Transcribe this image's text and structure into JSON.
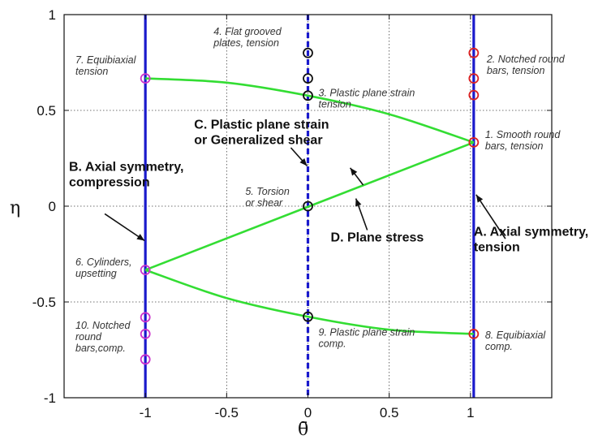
{
  "chart_data": {
    "type": "line",
    "title": "",
    "xlabel": "θ̄",
    "ylabel": "η",
    "xlim": [
      -1.5,
      1.5
    ],
    "ylim": [
      -1,
      1
    ],
    "x_ticks": [
      {
        "value": -1,
        "label": "-1"
      },
      {
        "value": -0.5,
        "label": "-0.5"
      },
      {
        "value": 0,
        "label": "0"
      },
      {
        "value": 0.5,
        "label": "0.5"
      },
      {
        "value": 1,
        "label": "1"
      }
    ],
    "y_ticks": [
      {
        "value": 1,
        "label": "1"
      },
      {
        "value": 0.5,
        "label": "0.5"
      },
      {
        "value": 0,
        "label": "0"
      },
      {
        "value": -0.5,
        "label": "-0.5"
      },
      {
        "value": -1,
        "label": "-1"
      }
    ],
    "grid": true,
    "colors": {
      "plane_stress": "#33dd33",
      "vertical": "#1a1acc",
      "red_marker": "#dd2222",
      "black_marker": "#111111",
      "magenta_marker": "#cc33cc"
    },
    "vertical_lines": [
      {
        "x": -1,
        "style": "solid"
      },
      {
        "x": 0,
        "style": "dashed"
      },
      {
        "x": 1.02,
        "style": "solid"
      }
    ],
    "curves": [
      {
        "points": [
          [
            -1,
            0.667
          ],
          [
            -0.5,
            0.645
          ],
          [
            0,
            0.577
          ],
          [
            0.5,
            0.48
          ],
          [
            1.02,
            0.333
          ]
        ]
      },
      {
        "points": [
          [
            -1,
            -0.333
          ],
          [
            1.02,
            0.333
          ]
        ]
      },
      {
        "points": [
          [
            -1,
            -0.333
          ],
          [
            -0.5,
            -0.48
          ],
          [
            0,
            -0.577
          ],
          [
            0.5,
            -0.645
          ],
          [
            1.02,
            -0.667
          ]
        ]
      }
    ],
    "markers": [
      {
        "x": 1.02,
        "y": 0.8,
        "color": "red"
      },
      {
        "x": 1.02,
        "y": 0.667,
        "color": "red"
      },
      {
        "x": 1.02,
        "y": 0.58,
        "color": "red"
      },
      {
        "x": 1.02,
        "y": 0.333,
        "color": "red"
      },
      {
        "x": 1.02,
        "y": -0.667,
        "color": "red"
      },
      {
        "x": 0,
        "y": 0.8,
        "color": "black"
      },
      {
        "x": 0,
        "y": 0.667,
        "color": "black"
      },
      {
        "x": 0,
        "y": 0.577,
        "color": "black"
      },
      {
        "x": 0,
        "y": 0,
        "color": "black"
      },
      {
        "x": 0,
        "y": -0.577,
        "color": "black"
      },
      {
        "x": -1,
        "y": 0.667,
        "color": "magenta"
      },
      {
        "x": -1,
        "y": -0.333,
        "color": "magenta"
      },
      {
        "x": -1,
        "y": -0.58,
        "color": "magenta"
      },
      {
        "x": -1,
        "y": -0.667,
        "color": "magenta"
      },
      {
        "x": -1,
        "y": -0.8,
        "color": "magenta"
      }
    ],
    "point_labels": [
      {
        "lines": [
          "7. Equibiaxial",
          "tension"
        ],
        "x": -1.43,
        "y": 0.745
      },
      {
        "lines": [
          "4. Flat grooved",
          "plates, tension"
        ],
        "x": -0.58,
        "y": 0.895
      },
      {
        "lines": [
          "3. Plastic plane strain",
          "tension"
        ],
        "x": 0.065,
        "y": 0.575
      },
      {
        "lines": [
          "2. Notched round",
          "bars, tension"
        ],
        "x": 1.1,
        "y": 0.75
      },
      {
        "lines": [
          "1. Smooth round",
          "bars, tension"
        ],
        "x": 1.09,
        "y": 0.355
      },
      {
        "lines": [
          "5. Torsion",
          "or shear"
        ],
        "x": -0.385,
        "y": 0.06
      },
      {
        "lines": [
          "6. Cylinders,",
          "upsetting"
        ],
        "x": -1.43,
        "y": -0.31
      },
      {
        "lines": [
          "10. Notched",
          "round",
          "bars,comp."
        ],
        "x": -1.43,
        "y": -0.64
      },
      {
        "lines": [
          "9. Plastic plane strain",
          "comp."
        ],
        "x": 0.065,
        "y": -0.675
      },
      {
        "lines": [
          "8. Equibiaxial",
          "comp."
        ],
        "x": 1.09,
        "y": -0.69
      }
    ],
    "region_labels": [
      {
        "lines": [
          "C. Plastic plane strain",
          "or Generalized shear"
        ],
        "x": -0.7,
        "y": 0.405
      },
      {
        "lines": [
          "B. Axial symmetry,",
          "compression"
        ],
        "x": -1.47,
        "y": 0.185
      },
      {
        "lines": [
          "D. Plane stress"
        ],
        "x": 0.14,
        "y": -0.185
      },
      {
        "lines": [
          "A. Axial symmetry,",
          "tension"
        ],
        "x": 1.02,
        "y": -0.155
      }
    ],
    "arrows": [
      {
        "from": [
          -0.105,
          0.305
        ],
        "to": [
          -0.005,
          0.21
        ]
      },
      {
        "from": [
          -1.25,
          -0.04
        ],
        "to": [
          -1.005,
          -0.18
        ]
      },
      {
        "from": [
          0.365,
          -0.125
        ],
        "to": [
          0.295,
          0.04
        ]
      },
      {
        "from": [
          1.215,
          -0.17
        ],
        "to": [
          1.035,
          0.06
        ]
      },
      {
        "from": [
          0.34,
          0.11
        ],
        "to": [
          0.26,
          0.2
        ]
      }
    ]
  }
}
